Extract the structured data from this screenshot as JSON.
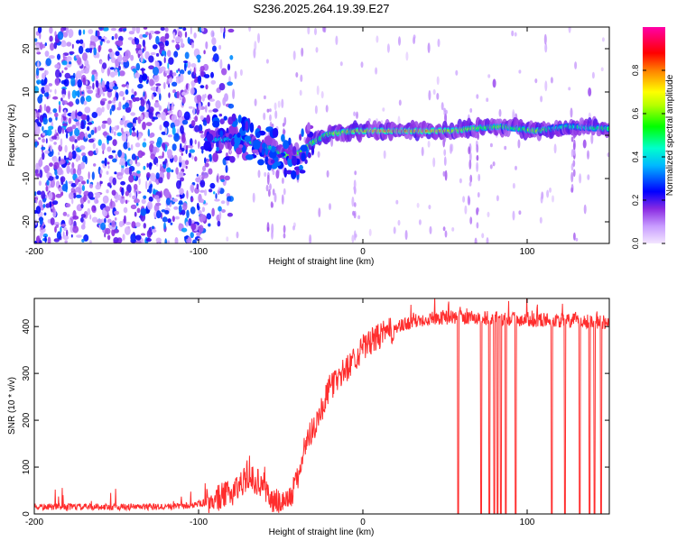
{
  "title": "S236.2025.264.19.39.E27",
  "chart_data": [
    {
      "type": "heatmap",
      "xlabel": "Height of straight line (km)",
      "ylabel": "Frequency (Hz)",
      "xlim": [
        -200,
        150
      ],
      "ylim": [
        -25,
        25
      ],
      "xticks": [
        -200,
        -100,
        0,
        100
      ],
      "yticks": [
        -20,
        -10,
        0,
        10,
        20
      ],
      "colorbar": {
        "label": "Normalized spectral amplitude",
        "ticks": [
          0.0,
          0.2,
          0.4,
          0.6,
          0.8
        ],
        "range": [
          0,
          1
        ],
        "colors": [
          "#f0e0ff",
          "#8a2be2",
          "#0000ff",
          "#00ffff",
          "#00ff00",
          "#ffff00",
          "#ff8000",
          "#ff0000",
          "#ff00ff"
        ]
      },
      "ridge": {
        "description": "Peak frequency track vs height",
        "x": [
          -85,
          -75,
          -65,
          -55,
          -48,
          -44,
          -38,
          -30,
          -25,
          -20,
          -15,
          -10,
          -5,
          0,
          20,
          40,
          55,
          65,
          75,
          85,
          95,
          105,
          115,
          125,
          135,
          150
        ],
        "y": [
          -1,
          -0.5,
          -2,
          -3,
          -4.5,
          -4.8,
          -4,
          -1.5,
          -0.5,
          0.5,
          0.5,
          0.8,
          1,
          1,
          1,
          1,
          1,
          1.5,
          1.8,
          2,
          1.5,
          1,
          1.5,
          2,
          1.8,
          1.5
        ],
        "peak_amplitude": [
          0.4,
          0.45,
          0.5,
          0.5,
          0.7,
          0.85,
          0.8,
          0.7,
          0.6,
          0.65,
          0.7,
          0.8,
          0.85,
          0.9,
          0.95,
          0.95,
          0.85,
          0.7,
          0.6,
          0.65,
          0.55,
          0.75,
          0.5,
          0.5,
          0.5,
          0.55
        ]
      },
      "noise_region": {
        "x_range": [
          -200,
          -90
        ],
        "y_range": [
          -25,
          25
        ],
        "amplitude": [
          0.05,
          0.35
        ]
      }
    },
    {
      "type": "line",
      "xlabel": "Height of straight line (km)",
      "ylabel": "SNR (10 * v/v)",
      "xlim": [
        -200,
        150
      ],
      "ylim": [
        0,
        460
      ],
      "xticks": [
        -200,
        -100,
        0,
        100
      ],
      "yticks": [
        0,
        100,
        200,
        300,
        400
      ],
      "color": "#ff2d2d",
      "trend": {
        "x": [
          -200,
          -120,
          -105,
          -95,
          -80,
          -70,
          -60,
          -55,
          -45,
          -40,
          -35,
          -30,
          -25,
          -20,
          -10,
          0,
          10,
          20,
          30,
          40,
          50,
          58,
          150
        ],
        "y": [
          15,
          15,
          18,
          25,
          45,
          80,
          60,
          25,
          30,
          70,
          150,
          185,
          225,
          270,
          310,
          355,
          380,
          395,
          410,
          418,
          420,
          420,
          410
        ]
      },
      "noise_amplitude": 45,
      "dropouts_x": [
        58,
        72,
        77,
        80,
        82,
        84,
        87,
        93,
        115,
        123,
        132,
        138,
        141,
        145
      ]
    }
  ]
}
